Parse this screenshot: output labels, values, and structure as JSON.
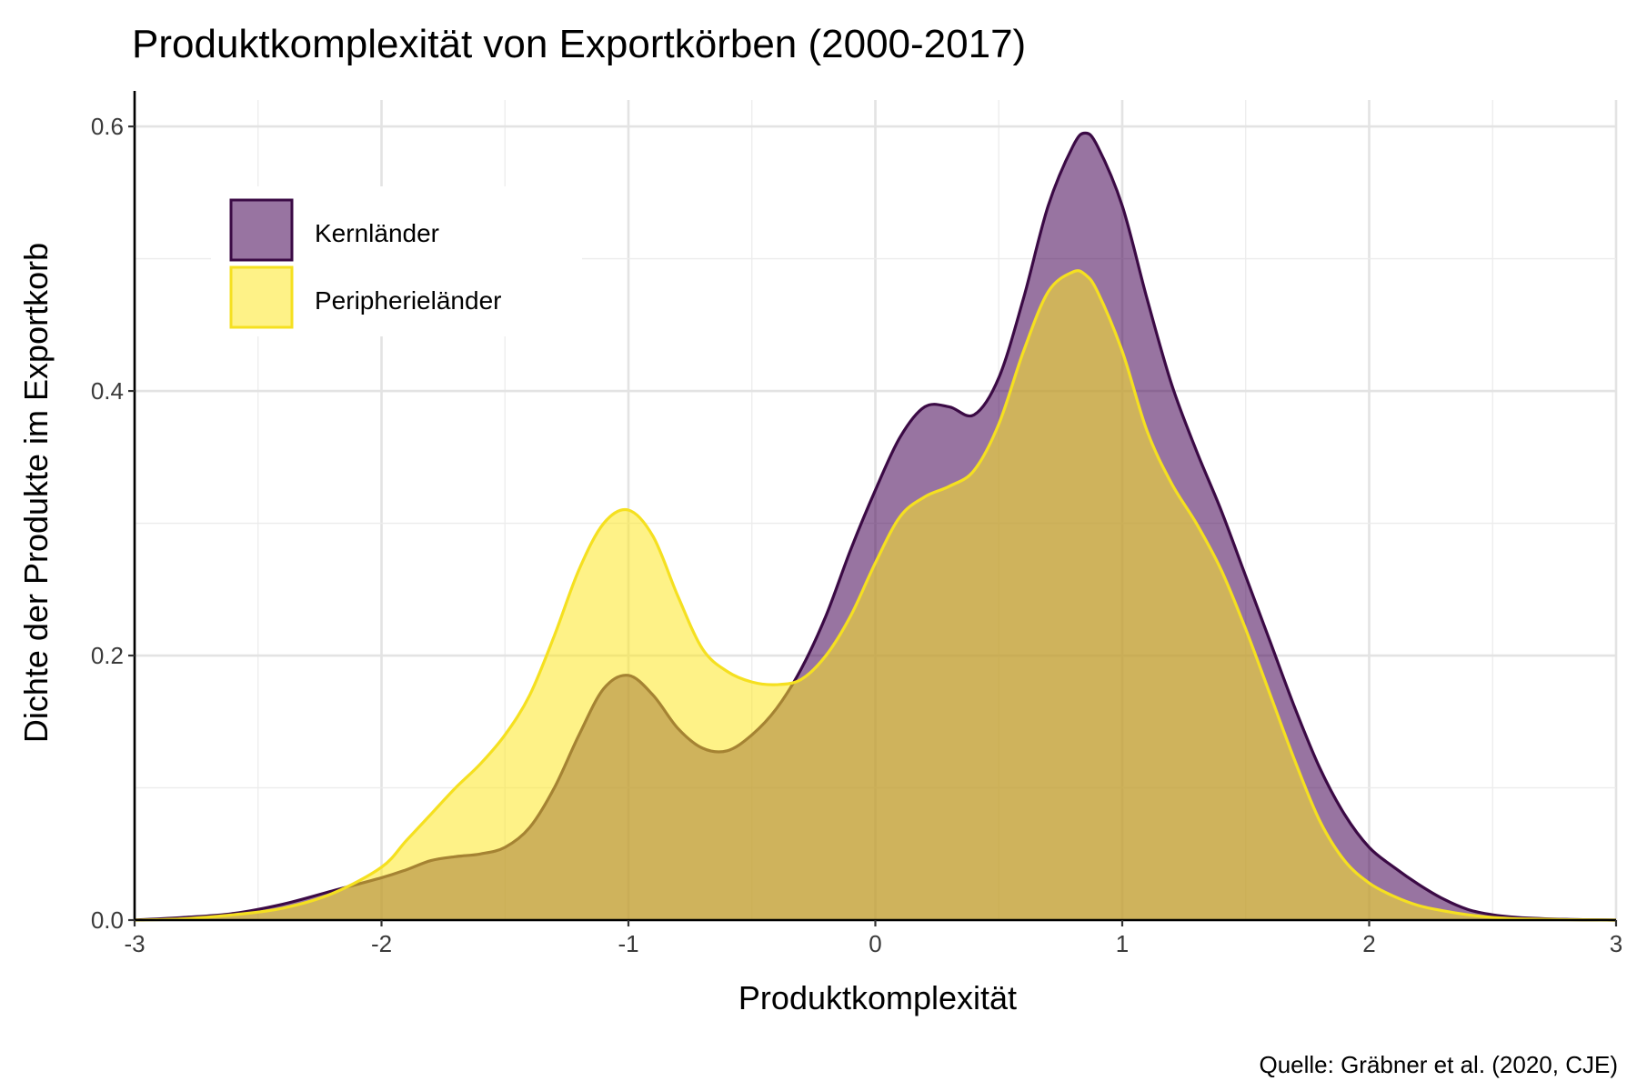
{
  "chart_data": {
    "type": "area",
    "title": "Produktkomplexität von Exportkörben (2000-2017)",
    "xlabel": "Produktkomplexität",
    "ylabel": "Dichte der Produkte im Exportkorb",
    "caption": "Quelle: Gräbner et al. (2020, CJE)",
    "xlim": [
      -3,
      3
    ],
    "ylim": [
      0,
      0.62
    ],
    "xticks": [
      -3,
      -2,
      -1,
      0,
      1,
      2,
      3
    ],
    "yticks": [
      0.0,
      0.2,
      0.4,
      0.6
    ],
    "xtick_labels": [
      "-3",
      "-2",
      "-1",
      "0",
      "1",
      "2",
      "3"
    ],
    "ytick_labels": [
      "0.0",
      "0.2",
      "0.4",
      "0.6"
    ],
    "grid": true,
    "legend_position": "top-left",
    "series": [
      {
        "name": "Kernländer",
        "fill": "#440154",
        "line": "#3b0a45",
        "x": [
          -3.0,
          -2.8,
          -2.6,
          -2.4,
          -2.2,
          -2.0,
          -1.9,
          -1.8,
          -1.7,
          -1.6,
          -1.5,
          -1.4,
          -1.3,
          -1.2,
          -1.1,
          -1.0,
          -0.9,
          -0.8,
          -0.7,
          -0.6,
          -0.5,
          -0.4,
          -0.3,
          -0.2,
          -0.1,
          0.0,
          0.1,
          0.2,
          0.3,
          0.4,
          0.5,
          0.6,
          0.7,
          0.8,
          0.85,
          0.9,
          1.0,
          1.1,
          1.2,
          1.3,
          1.4,
          1.5,
          1.6,
          1.7,
          1.8,
          1.9,
          2.0,
          2.1,
          2.2,
          2.3,
          2.4,
          2.5,
          2.6,
          2.8,
          3.0
        ],
        "y": [
          0.0,
          0.002,
          0.005,
          0.012,
          0.022,
          0.032,
          0.038,
          0.045,
          0.048,
          0.05,
          0.055,
          0.07,
          0.1,
          0.14,
          0.175,
          0.185,
          0.17,
          0.145,
          0.13,
          0.128,
          0.14,
          0.16,
          0.19,
          0.23,
          0.28,
          0.325,
          0.365,
          0.388,
          0.388,
          0.382,
          0.41,
          0.47,
          0.54,
          0.585,
          0.595,
          0.585,
          0.54,
          0.47,
          0.405,
          0.355,
          0.31,
          0.26,
          0.21,
          0.16,
          0.115,
          0.08,
          0.055,
          0.04,
          0.027,
          0.016,
          0.008,
          0.004,
          0.002,
          0.0005,
          0.0
        ]
      },
      {
        "name": "Peripherieländer",
        "fill": "#FDE725",
        "line": "#F5E020",
        "x": [
          -3.0,
          -2.8,
          -2.6,
          -2.4,
          -2.2,
          -2.0,
          -1.9,
          -1.8,
          -1.7,
          -1.6,
          -1.5,
          -1.4,
          -1.3,
          -1.2,
          -1.1,
          -1.0,
          -0.9,
          -0.8,
          -0.7,
          -0.6,
          -0.5,
          -0.4,
          -0.3,
          -0.2,
          -0.1,
          0.0,
          0.1,
          0.2,
          0.3,
          0.4,
          0.5,
          0.6,
          0.7,
          0.8,
          0.85,
          0.9,
          1.0,
          1.1,
          1.2,
          1.3,
          1.4,
          1.5,
          1.6,
          1.7,
          1.8,
          1.9,
          2.0,
          2.1,
          2.2,
          2.3,
          2.4,
          2.5,
          2.6,
          2.8,
          3.0
        ],
        "y": [
          0.0,
          0.001,
          0.004,
          0.009,
          0.02,
          0.04,
          0.06,
          0.08,
          0.1,
          0.118,
          0.14,
          0.17,
          0.215,
          0.265,
          0.3,
          0.31,
          0.29,
          0.245,
          0.205,
          0.188,
          0.18,
          0.178,
          0.182,
          0.2,
          0.23,
          0.27,
          0.305,
          0.32,
          0.328,
          0.34,
          0.375,
          0.43,
          0.475,
          0.49,
          0.488,
          0.475,
          0.43,
          0.37,
          0.33,
          0.3,
          0.265,
          0.22,
          0.17,
          0.12,
          0.075,
          0.045,
          0.028,
          0.018,
          0.011,
          0.007,
          0.004,
          0.002,
          0.001,
          0.0003,
          0.0
        ]
      }
    ]
  }
}
